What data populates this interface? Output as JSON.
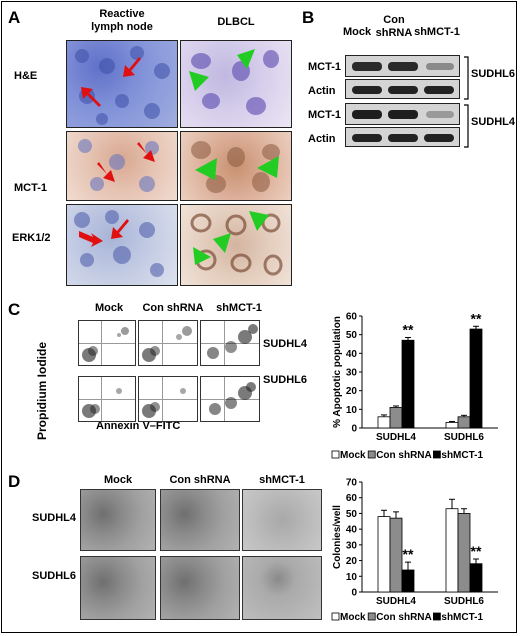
{
  "panel_a": {
    "label": "A",
    "col_headers": [
      "Reactive\nlymph node",
      "DLBCL"
    ],
    "row_labels": [
      "H&E",
      "MCT-1",
      "ERK1/2"
    ]
  },
  "panel_b": {
    "label": "B",
    "col_headers": [
      "Mock",
      "Con\nshRNA",
      "shMCT-1"
    ],
    "row_labels": [
      "MCT-1",
      "Actin",
      "MCT-1",
      "Actin"
    ],
    "cell_lines": [
      "SUDHL6",
      "SUDHL4"
    ]
  },
  "panel_c": {
    "label": "C",
    "col_headers": [
      "Mock",
      "Con shRNA",
      "shMCT-1"
    ],
    "row_labels": [
      "SUDHL4",
      "SUDHL6"
    ],
    "y_axis_label": "Propidium Iodide",
    "x_axis_label": "Annexin V–FITC"
  },
  "panel_d": {
    "label": "D",
    "col_headers": [
      "Mock",
      "Con shRNA",
      "shMCT-1"
    ],
    "row_labels": [
      "SUDHL4",
      "SUDHL6"
    ]
  },
  "colors": {
    "mock": "#ffffff",
    "con": "#8c8c8c",
    "sh": "#000000",
    "arrow_red": "#e01010",
    "arrow_green": "#22cc22"
  },
  "chart_data": [
    {
      "type": "bar",
      "categories": [
        "SUDHL4",
        "SUDHL6"
      ],
      "series": [
        {
          "name": "Mock",
          "values": [
            6,
            3
          ],
          "errors": [
            1,
            0.5
          ]
        },
        {
          "name": "Con shRNA",
          "values": [
            11,
            6
          ],
          "errors": [
            0.8,
            0.8
          ]
        },
        {
          "name": "shMCT-1",
          "values": [
            47,
            53
          ],
          "errors": [
            1.5,
            1.5
          ]
        }
      ],
      "ylabel": "% Apoptotic population",
      "ylim": [
        0,
        60
      ],
      "yticks": [
        "0",
        "10",
        "20",
        "30",
        "40",
        "50",
        "60"
      ],
      "significance": [
        "**",
        "**"
      ],
      "legend": "bottom"
    },
    {
      "type": "bar",
      "categories": [
        "SUDHL4",
        "SUDHL6"
      ],
      "series": [
        {
          "name": "Mock",
          "values": [
            48,
            53
          ],
          "errors": [
            4,
            6
          ]
        },
        {
          "name": "Con shRNA",
          "values": [
            47,
            50
          ],
          "errors": [
            4,
            3
          ]
        },
        {
          "name": "shMCT-1",
          "values": [
            14,
            18
          ],
          "errors": [
            5,
            3
          ]
        }
      ],
      "ylabel": "Colonies/well",
      "ylim": [
        0,
        70
      ],
      "yticks": [
        "0",
        "10",
        "20",
        "30",
        "40",
        "50",
        "60",
        "70"
      ],
      "significance": [
        "**",
        "**"
      ],
      "legend": "bottom"
    }
  ]
}
